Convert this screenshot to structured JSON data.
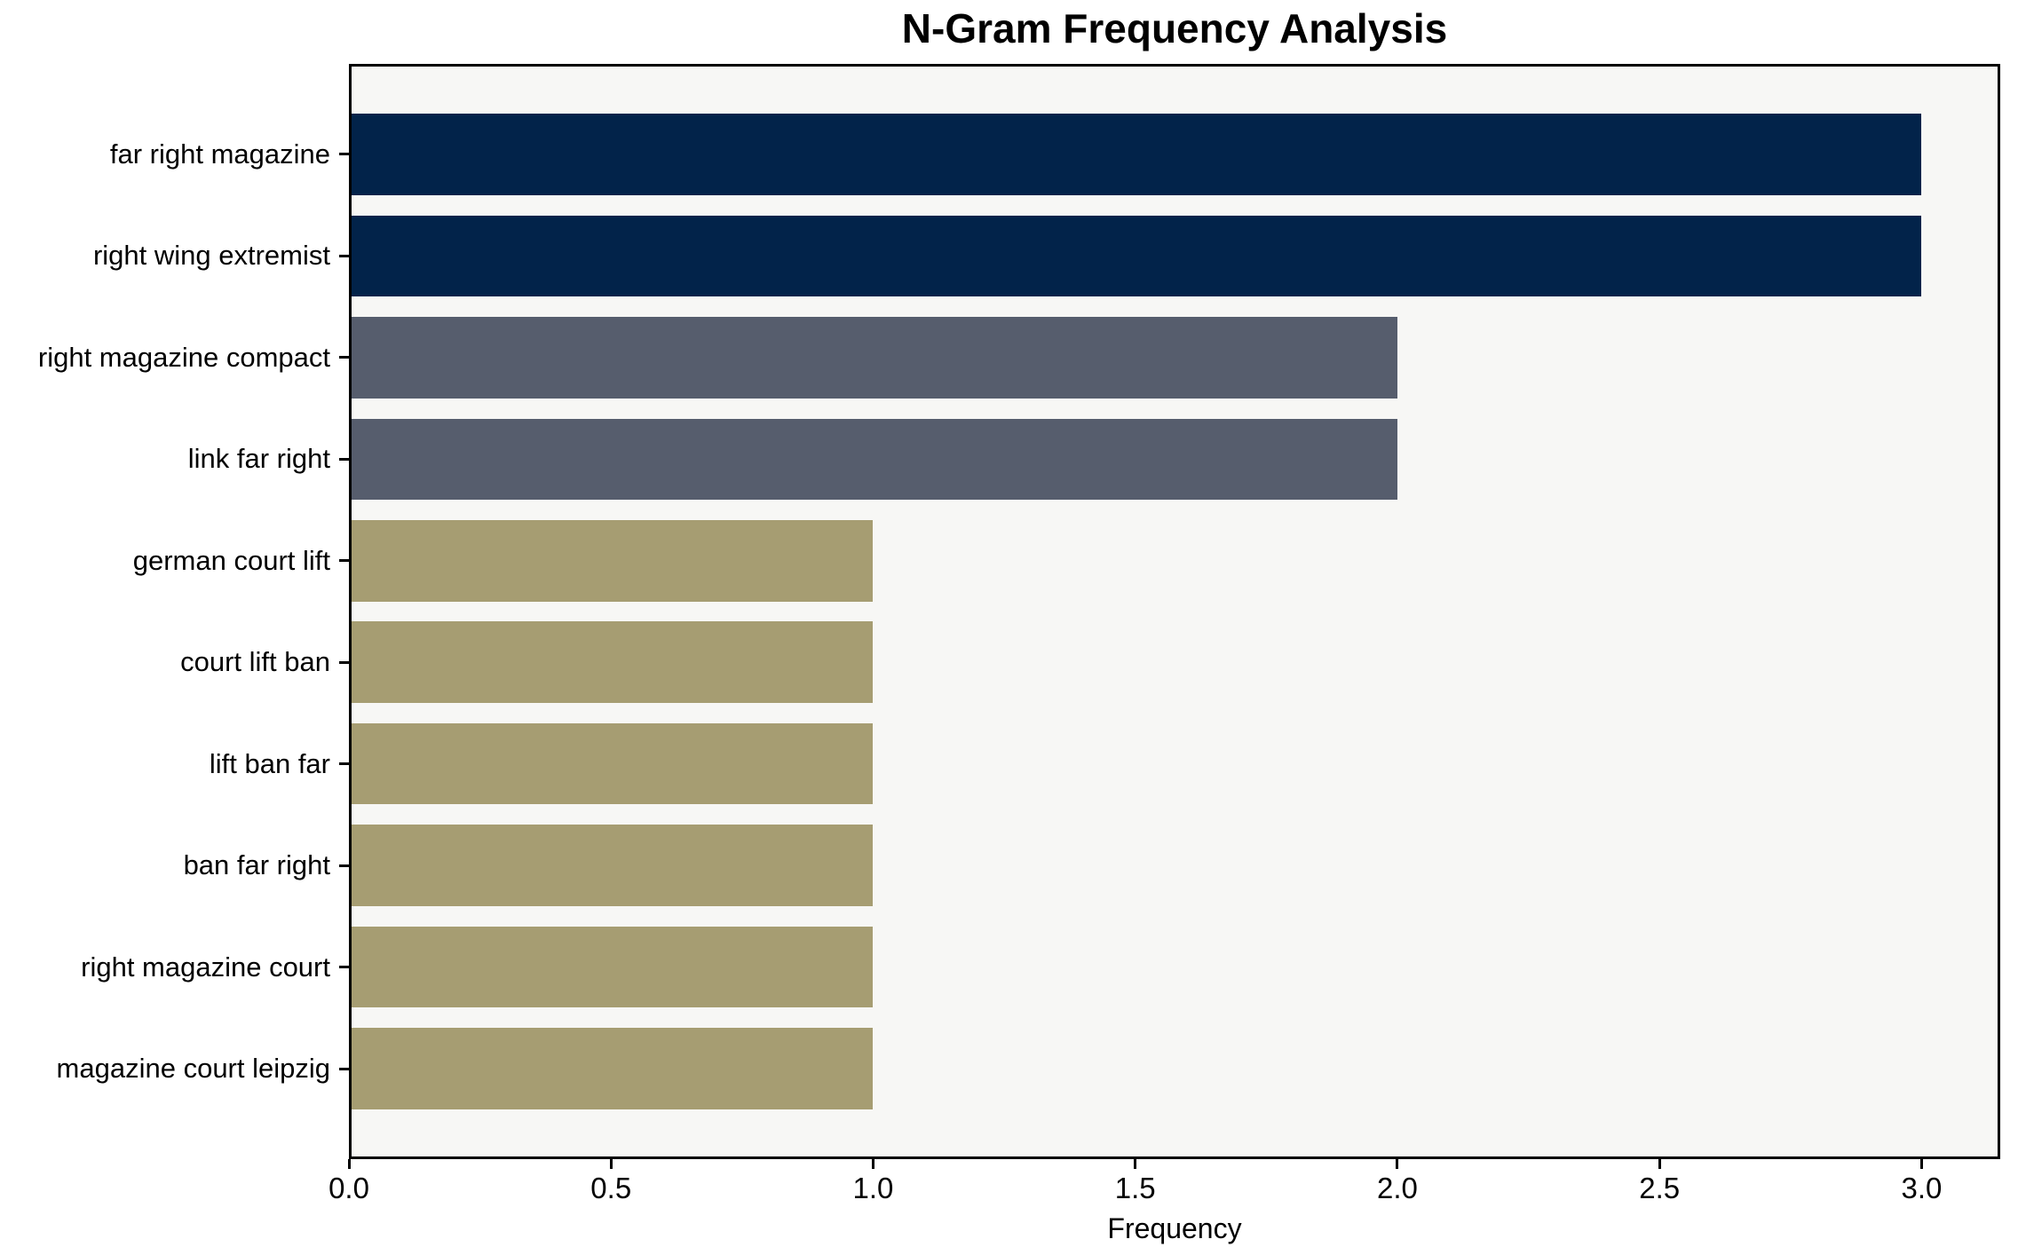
{
  "chart_data": {
    "type": "bar",
    "orientation": "horizontal",
    "title": "N-Gram Frequency Analysis",
    "xlabel": "Frequency",
    "ylabel": "",
    "categories": [
      "far right magazine",
      "right wing extremist",
      "right magazine compact",
      "link far right",
      "german court lift",
      "court lift ban",
      "lift ban far",
      "ban far right",
      "right magazine court",
      "magazine court leipzig"
    ],
    "values": [
      3,
      3,
      2,
      2,
      1,
      1,
      1,
      1,
      1,
      1
    ],
    "bar_colors": [
      "#02234A",
      "#02234A",
      "#565D6D",
      "#565D6D",
      "#A69D72",
      "#A69D72",
      "#A69D72",
      "#A69D72",
      "#A69D72",
      "#A69D72"
    ],
    "xlim": [
      0,
      3.15
    ],
    "xticks": [
      {
        "value": 0.0,
        "label": "0.0"
      },
      {
        "value": 0.5,
        "label": "0.5"
      },
      {
        "value": 1.0,
        "label": "1.0"
      },
      {
        "value": 1.5,
        "label": "1.5"
      },
      {
        "value": 2.0,
        "label": "2.0"
      },
      {
        "value": 2.5,
        "label": "2.5"
      },
      {
        "value": 3.0,
        "label": "3.0"
      }
    ],
    "grid": false,
    "legend": "none",
    "colors": {
      "plot_background": "#F7F7F5",
      "figure_background": "#FFFFFF",
      "spine": "#000000",
      "text": "#000000"
    }
  }
}
